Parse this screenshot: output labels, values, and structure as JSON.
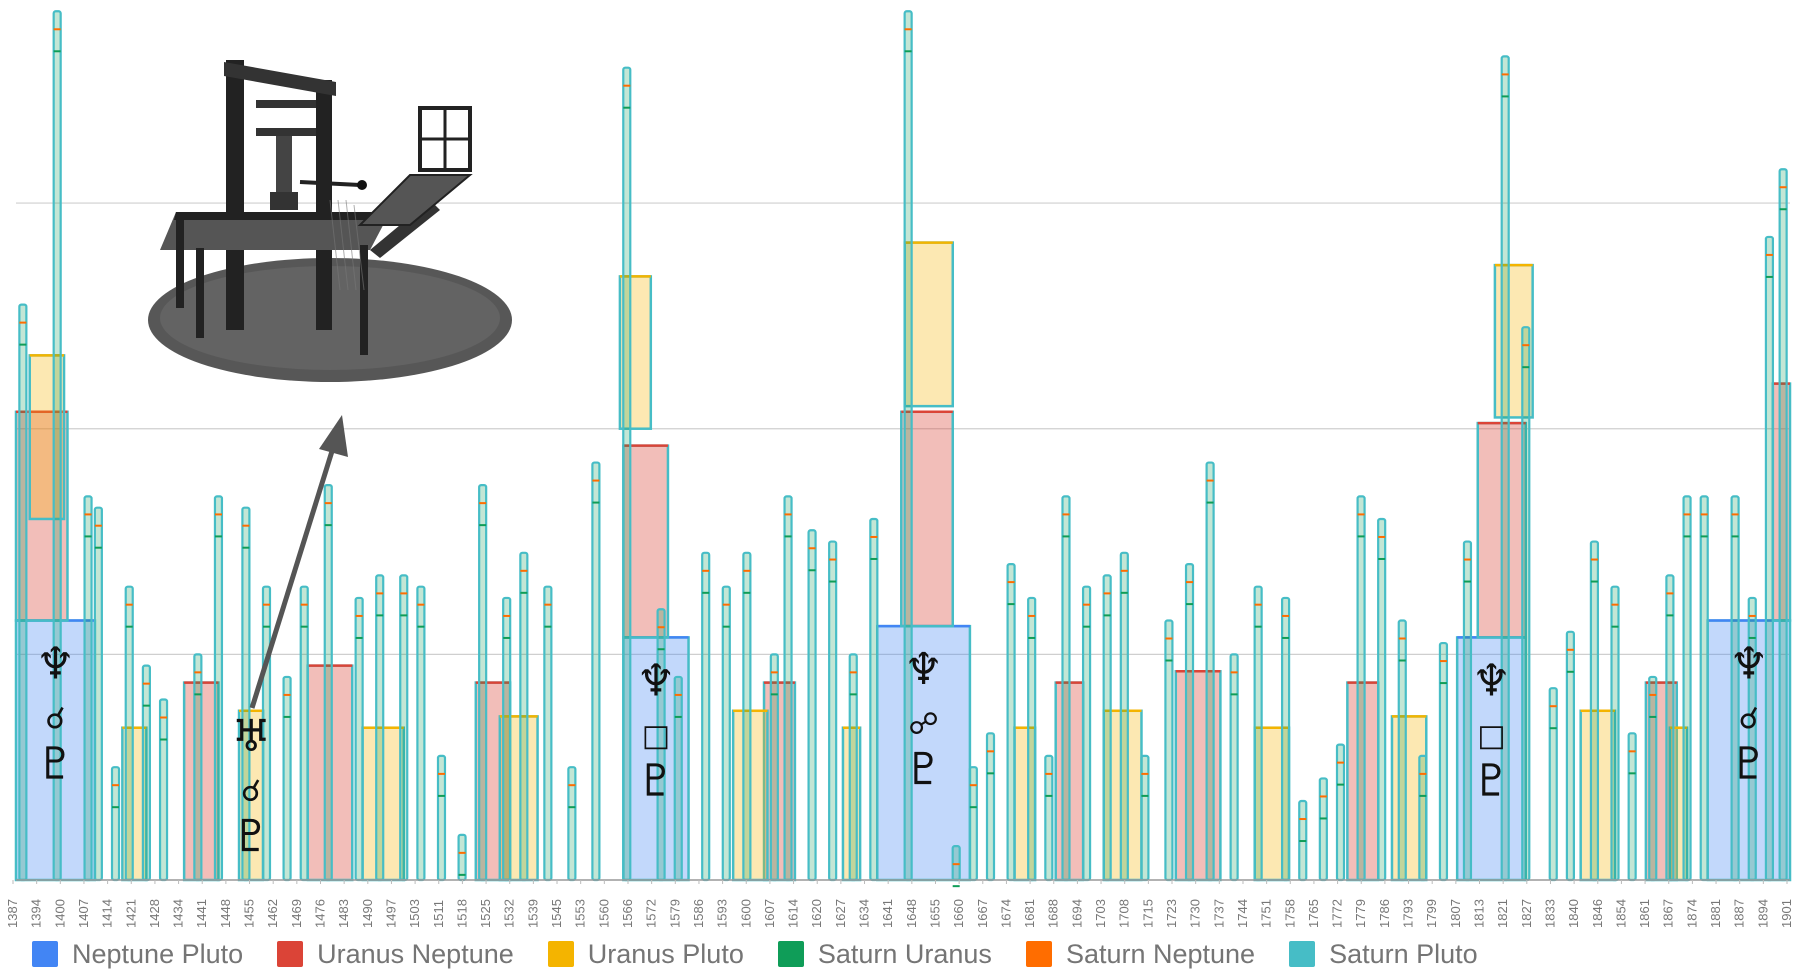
{
  "chart_data": {
    "type": "area",
    "stacked": true,
    "x_ticks": [
      "1387",
      "1394",
      "1400",
      "1407",
      "1414",
      "1421",
      "1428",
      "1434",
      "1441",
      "1448",
      "1455",
      "1462",
      "1469",
      "1476",
      "1483",
      "1490",
      "1497",
      "1503",
      "1511",
      "1518",
      "1525",
      "1532",
      "1539",
      "1545",
      "1553",
      "1560",
      "1566",
      "1572",
      "1579",
      "1586",
      "1593",
      "1600",
      "1607",
      "1614",
      "1620",
      "1627",
      "1634",
      "1641",
      "1648",
      "1655",
      "1660",
      "1667",
      "1674",
      "1681",
      "1688",
      "1694",
      "1703",
      "1708",
      "1715",
      "1723",
      "1730",
      "1737",
      "1744",
      "1751",
      "1758",
      "1765",
      "1772",
      "1779",
      "1786",
      "1793",
      "1799",
      "1807",
      "1813",
      "1821",
      "1827",
      "1833",
      "1840",
      "1846",
      "1854",
      "1861",
      "1867",
      "1874",
      "1881",
      "1887",
      "1894",
      "1901"
    ],
    "x_range": [
      1387,
      1904
    ],
    "grid": "horizontal",
    "legend_position": "bottom",
    "series": [
      {
        "name": "Neptune Pluto",
        "color": "#4285f4"
      },
      {
        "name": "Uranus Neptune",
        "color": "#db4437"
      },
      {
        "name": "Uranus Pluto",
        "color": "#f4b400"
      },
      {
        "name": "Saturn Uranus",
        "color": "#0f9d58"
      },
      {
        "name": "Saturn Neptune",
        "color": "#ff6d00"
      },
      {
        "name": "Saturn Pluto",
        "color": "#46bdc6"
      }
    ],
    "neptune_pluto_blocks": [
      {
        "start": 1387,
        "end": 1410,
        "value": 2.3,
        "aspect_glyphs": [
          "♆",
          "☌",
          "♇"
        ]
      },
      {
        "start": 1564,
        "end": 1583,
        "value": 2.15,
        "aspect_glyphs": [
          "♆",
          "□",
          "♇"
        ]
      },
      {
        "start": 1638,
        "end": 1665,
        "value": 2.25,
        "aspect_glyphs": [
          "♆",
          "☍",
          "♇"
        ]
      },
      {
        "start": 1807,
        "end": 1827,
        "value": 2.15,
        "aspect_glyphs": [
          "♆",
          "□",
          "♇"
        ]
      },
      {
        "start": 1880,
        "end": 1904,
        "value": 2.3,
        "aspect_glyphs": [
          "♆",
          "☌",
          "♇"
        ]
      }
    ],
    "uranus_neptune_blocks": [
      {
        "start": 1387,
        "end": 1402,
        "value": 1.85
      },
      {
        "start": 1436,
        "end": 1446,
        "value": 1.75
      },
      {
        "start": 1472,
        "end": 1485,
        "value": 1.9
      },
      {
        "start": 1521,
        "end": 1531,
        "value": 1.75
      },
      {
        "start": 1564,
        "end": 1577,
        "value": 1.7
      },
      {
        "start": 1605,
        "end": 1614,
        "value": 1.75
      },
      {
        "start": 1645,
        "end": 1660,
        "value": 1.9
      },
      {
        "start": 1690,
        "end": 1698,
        "value": 1.75
      },
      {
        "start": 1725,
        "end": 1738,
        "value": 1.85
      },
      {
        "start": 1775,
        "end": 1784,
        "value": 1.75
      },
      {
        "start": 1813,
        "end": 1827,
        "value": 1.9
      },
      {
        "start": 1862,
        "end": 1871,
        "value": 1.75
      },
      {
        "start": 1899,
        "end": 1904,
        "value": 2.1
      }
    ],
    "uranus_pluto_blocks": [
      {
        "start": 1391,
        "end": 1401,
        "value": 1.45,
        "base": 3.2
      },
      {
        "start": 1418,
        "end": 1425,
        "value": 1.35
      },
      {
        "start": 1452,
        "end": 1459,
        "value": 1.5,
        "aspect_glyphs": [
          "♅",
          "☌",
          "♇"
        ]
      },
      {
        "start": 1488,
        "end": 1500,
        "value": 1.35
      },
      {
        "start": 1528,
        "end": 1539,
        "value": 1.45
      },
      {
        "start": 1563,
        "end": 1572,
        "value": 1.35,
        "base": 4.0
      },
      {
        "start": 1596,
        "end": 1606,
        "value": 1.5
      },
      {
        "start": 1628,
        "end": 1633,
        "value": 1.35
      },
      {
        "start": 1646,
        "end": 1660,
        "value": 1.45,
        "base": 4.2
      },
      {
        "start": 1678,
        "end": 1684,
        "value": 1.35
      },
      {
        "start": 1704,
        "end": 1715,
        "value": 1.5
      },
      {
        "start": 1748,
        "end": 1758,
        "value": 1.35
      },
      {
        "start": 1788,
        "end": 1798,
        "value": 1.45
      },
      {
        "start": 1818,
        "end": 1829,
        "value": 1.35,
        "base": 4.1
      },
      {
        "start": 1843,
        "end": 1853,
        "value": 1.5
      },
      {
        "start": 1869,
        "end": 1874,
        "value": 1.35
      }
    ],
    "saturn_spikes": [
      {
        "x": 1389,
        "value": 5.1
      },
      {
        "x": 1399,
        "value": 7.7
      },
      {
        "x": 1408,
        "value": 3.4
      },
      {
        "x": 1411,
        "value": 3.3
      },
      {
        "x": 1416,
        "value": 1.0
      },
      {
        "x": 1420,
        "value": 2.6
      },
      {
        "x": 1425,
        "value": 1.9
      },
      {
        "x": 1430,
        "value": 1.6
      },
      {
        "x": 1440,
        "value": 2.0
      },
      {
        "x": 1446,
        "value": 3.4
      },
      {
        "x": 1454,
        "value": 3.3
      },
      {
        "x": 1460,
        "value": 2.6
      },
      {
        "x": 1466,
        "value": 1.8
      },
      {
        "x": 1471,
        "value": 2.6
      },
      {
        "x": 1478,
        "value": 3.5
      },
      {
        "x": 1487,
        "value": 2.5
      },
      {
        "x": 1493,
        "value": 2.7
      },
      {
        "x": 1500,
        "value": 2.7
      },
      {
        "x": 1505,
        "value": 2.6
      },
      {
        "x": 1511,
        "value": 1.1
      },
      {
        "x": 1517,
        "value": 0.4
      },
      {
        "x": 1523,
        "value": 3.5
      },
      {
        "x": 1530,
        "value": 2.5
      },
      {
        "x": 1535,
        "value": 2.9
      },
      {
        "x": 1542,
        "value": 2.6
      },
      {
        "x": 1549,
        "value": 1.0
      },
      {
        "x": 1556,
        "value": 3.7
      },
      {
        "x": 1565,
        "value": 7.2
      },
      {
        "x": 1575,
        "value": 2.4
      },
      {
        "x": 1580,
        "value": 1.8
      },
      {
        "x": 1588,
        "value": 2.9
      },
      {
        "x": 1594,
        "value": 2.6
      },
      {
        "x": 1600,
        "value": 2.9
      },
      {
        "x": 1608,
        "value": 2.0
      },
      {
        "x": 1612,
        "value": 3.4
      },
      {
        "x": 1619,
        "value": 3.1
      },
      {
        "x": 1625,
        "value": 3.0
      },
      {
        "x": 1631,
        "value": 2.0
      },
      {
        "x": 1637,
        "value": 3.2
      },
      {
        "x": 1647,
        "value": 7.7
      },
      {
        "x": 1661,
        "value": 0.3
      },
      {
        "x": 1666,
        "value": 1.0
      },
      {
        "x": 1671,
        "value": 1.3
      },
      {
        "x": 1677,
        "value": 2.8
      },
      {
        "x": 1683,
        "value": 2.5
      },
      {
        "x": 1688,
        "value": 1.1
      },
      {
        "x": 1693,
        "value": 3.4
      },
      {
        "x": 1699,
        "value": 2.6
      },
      {
        "x": 1705,
        "value": 2.7
      },
      {
        "x": 1710,
        "value": 2.9
      },
      {
        "x": 1716,
        "value": 1.1
      },
      {
        "x": 1723,
        "value": 2.3
      },
      {
        "x": 1729,
        "value": 2.8
      },
      {
        "x": 1735,
        "value": 3.7
      },
      {
        "x": 1742,
        "value": 2.0
      },
      {
        "x": 1749,
        "value": 2.6
      },
      {
        "x": 1757,
        "value": 2.5
      },
      {
        "x": 1762,
        "value": 0.7
      },
      {
        "x": 1768,
        "value": 0.9
      },
      {
        "x": 1773,
        "value": 1.2
      },
      {
        "x": 1779,
        "value": 3.4
      },
      {
        "x": 1785,
        "value": 3.2
      },
      {
        "x": 1791,
        "value": 2.3
      },
      {
        "x": 1797,
        "value": 1.1
      },
      {
        "x": 1803,
        "value": 2.1
      },
      {
        "x": 1810,
        "value": 3.0
      },
      {
        "x": 1821,
        "value": 7.3
      },
      {
        "x": 1827,
        "value": 4.9
      },
      {
        "x": 1835,
        "value": 1.7
      },
      {
        "x": 1840,
        "value": 2.2
      },
      {
        "x": 1847,
        "value": 3.0
      },
      {
        "x": 1853,
        "value": 2.6
      },
      {
        "x": 1858,
        "value": 1.3
      },
      {
        "x": 1864,
        "value": 1.8
      },
      {
        "x": 1869,
        "value": 2.7
      },
      {
        "x": 1874,
        "value": 3.4
      },
      {
        "x": 1879,
        "value": 3.4
      },
      {
        "x": 1888,
        "value": 3.4
      },
      {
        "x": 1893,
        "value": 2.5
      },
      {
        "x": 1898,
        "value": 5.7
      },
      {
        "x": 1902,
        "value": 6.3
      }
    ],
    "ylim": [
      0,
      7.8
    ],
    "gridlines": [
      2.0,
      4.0,
      6.0
    ]
  },
  "annotation": {
    "illustration": "printing-press-engraving",
    "arrow_color": "#555555"
  }
}
